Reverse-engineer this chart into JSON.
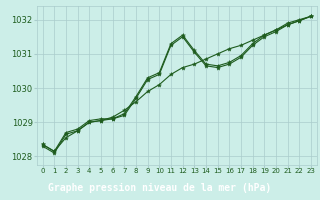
{
  "bg_color": "#cceee8",
  "plot_bg_color": "#cceee8",
  "label_bar_color": "#2d6a2d",
  "label_text_color": "#ffffff",
  "line_color": "#1e5c1e",
  "grid_color": "#aacccc",
  "xlim": [
    -0.5,
    23.5
  ],
  "ylim": [
    1027.75,
    1032.4
  ],
  "xtick_labels": [
    "0",
    "1",
    "2",
    "3",
    "4",
    "5",
    "6",
    "7",
    "8",
    "9",
    "10",
    "11",
    "12",
    "13",
    "14",
    "15",
    "16",
    "17",
    "18",
    "19",
    "20",
    "21",
    "22",
    "23"
  ],
  "ytick_labels": [
    "1028",
    "1029",
    "1030",
    "1031",
    "1032"
  ],
  "ytick_vals": [
    1028,
    1029,
    1030,
    1031,
    1032
  ],
  "xlabel": "Graphe pression niveau de la mer (hPa)",
  "series1_x": [
    0,
    1,
    2,
    3,
    4,
    5,
    6,
    7,
    8,
    9,
    10,
    11,
    12,
    13,
    14,
    15,
    16,
    17,
    18,
    19,
    20,
    21,
    22,
    23
  ],
  "series1_y": [
    1028.35,
    1028.15,
    1028.7,
    1028.8,
    1029.05,
    1029.1,
    1029.1,
    1029.25,
    1029.75,
    1030.3,
    1030.45,
    1031.3,
    1031.55,
    1031.1,
    1030.7,
    1030.65,
    1030.75,
    1030.95,
    1031.3,
    1031.55,
    1031.7,
    1031.9,
    1032.0,
    1032.1
  ],
  "series2_x": [
    0,
    1,
    2,
    3,
    4,
    5,
    6,
    7,
    8,
    9,
    10,
    11,
    12,
    13,
    14,
    15,
    16,
    17,
    18,
    19,
    20,
    21,
    22,
    23
  ],
  "series2_y": [
    1028.35,
    1028.15,
    1028.55,
    1028.75,
    1029.0,
    1029.05,
    1029.15,
    1029.35,
    1029.6,
    1029.9,
    1030.1,
    1030.4,
    1030.6,
    1030.7,
    1030.85,
    1031.0,
    1031.15,
    1031.25,
    1031.4,
    1031.55,
    1031.7,
    1031.85,
    1031.97,
    1032.1
  ],
  "series3_x": [
    0,
    1,
    2,
    3,
    4,
    5,
    6,
    7,
    8,
    9,
    10,
    11,
    12,
    13,
    14,
    15,
    16,
    17,
    18,
    19,
    20,
    21,
    22,
    23
  ],
  "series3_y": [
    1028.3,
    1028.1,
    1028.65,
    1028.75,
    1029.0,
    1029.05,
    1029.1,
    1029.2,
    1029.7,
    1030.25,
    1030.4,
    1031.25,
    1031.5,
    1031.05,
    1030.65,
    1030.6,
    1030.7,
    1030.9,
    1031.25,
    1031.5,
    1031.65,
    1031.85,
    1031.97,
    1032.1
  ]
}
